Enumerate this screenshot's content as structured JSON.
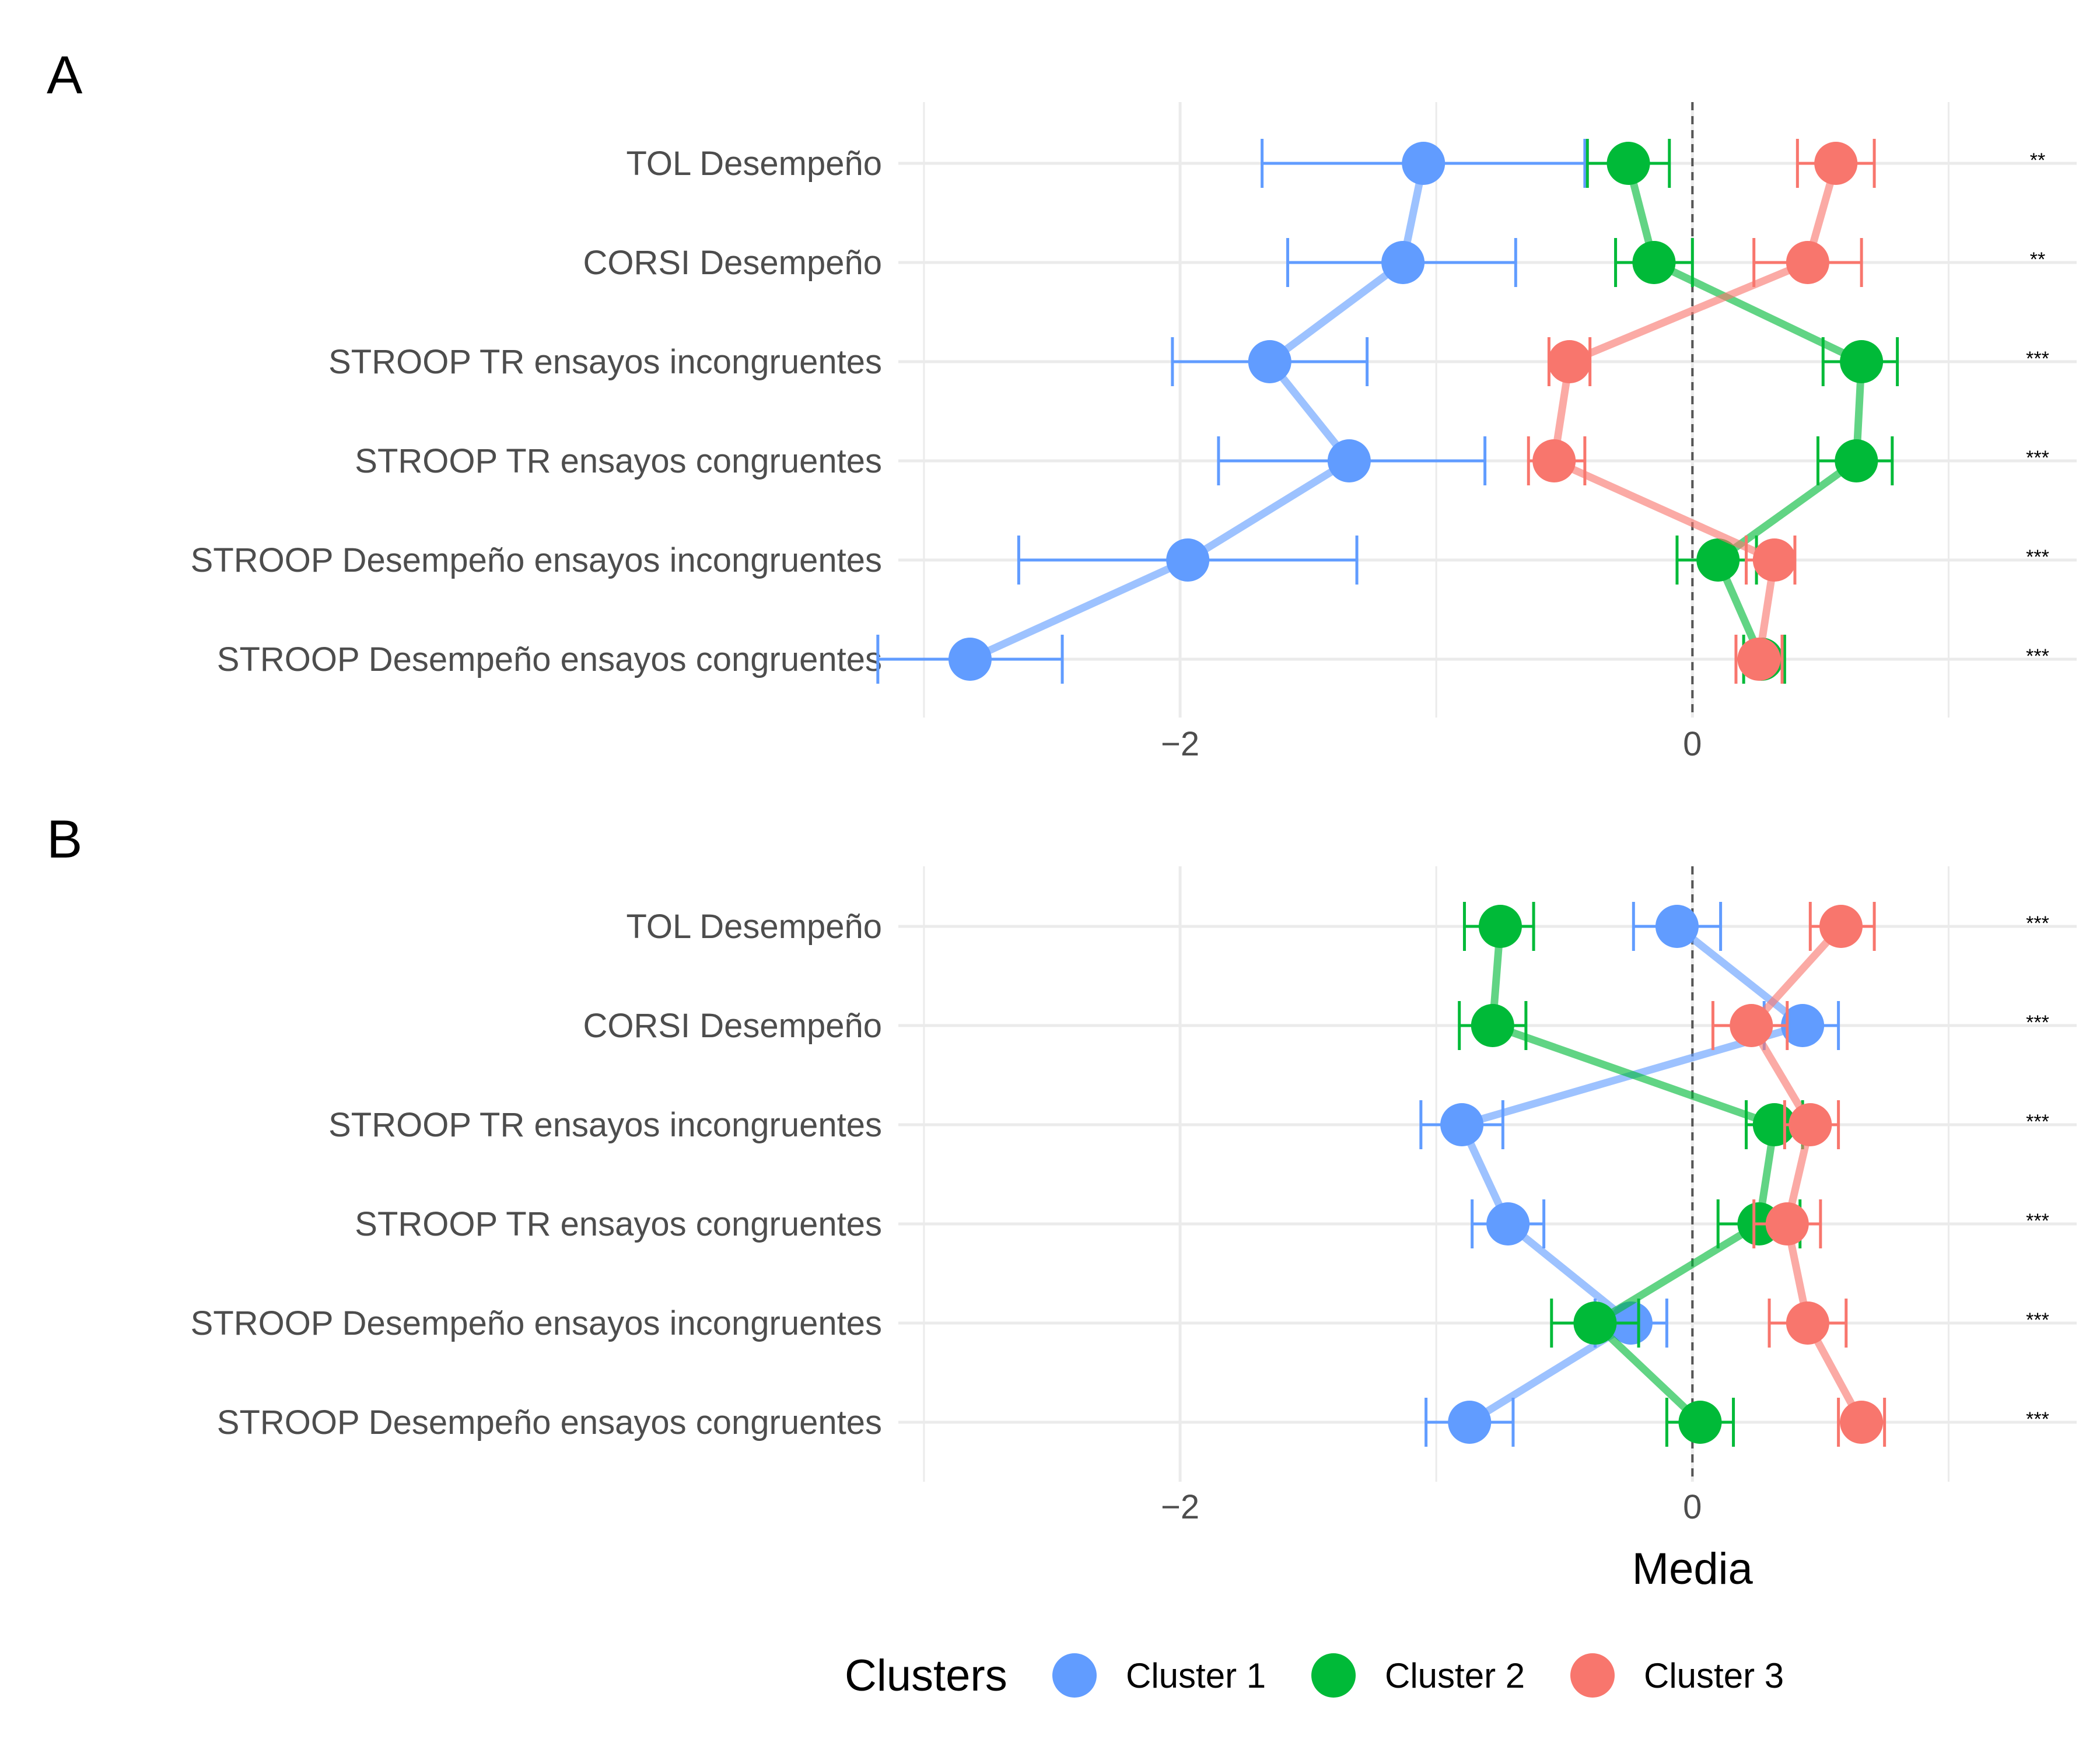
{
  "chart_data": [
    {
      "type": "line",
      "panel_label": "A",
      "xlabel": "",
      "xlim": [
        -3.1,
        1.5
      ],
      "xticks": [
        -2,
        0
      ],
      "reference_line": 0,
      "categories": [
        "TOL Desempeño",
        "CORSI Desempeño",
        "STROOP TR ensayos incongruentes",
        "STROOP TR ensayos congruentes",
        "STROOP Desempeño ensayos incongruentes",
        "STROOP Desempeño ensayos congruentes"
      ],
      "significance": [
        "**",
        "**",
        "***",
        "***",
        "***",
        "***"
      ],
      "series": [
        {
          "name": "Cluster 1",
          "color": "#619CFF",
          "values": [
            -1.05,
            -1.13,
            -1.65,
            -1.34,
            -1.97,
            -2.82
          ],
          "lower": [
            -1.68,
            -1.58,
            -2.03,
            -1.85,
            -2.63,
            -3.18
          ],
          "upper": [
            -0.42,
            -0.69,
            -1.27,
            -0.81,
            -1.31,
            -2.46
          ]
        },
        {
          "name": "Cluster 2",
          "color": "#00BA38",
          "values": [
            -0.25,
            -0.15,
            0.66,
            0.64,
            0.1,
            0.27
          ],
          "lower": [
            -0.41,
            -0.3,
            0.51,
            0.49,
            -0.06,
            0.2
          ],
          "upper": [
            -0.09,
            0.0,
            0.8,
            0.78,
            0.25,
            0.36
          ]
        },
        {
          "name": "Cluster 3",
          "color": "#F8766D",
          "values": [
            0.56,
            0.45,
            -0.48,
            -0.54,
            0.32,
            0.26
          ],
          "lower": [
            0.41,
            0.24,
            -0.56,
            -0.64,
            0.21,
            0.17
          ],
          "upper": [
            0.71,
            0.66,
            -0.4,
            -0.42,
            0.4,
            0.35
          ]
        }
      ]
    },
    {
      "type": "line",
      "panel_label": "B",
      "xlabel": "Media",
      "xlim": [
        -3.1,
        1.5
      ],
      "xticks": [
        -2,
        0
      ],
      "reference_line": 0,
      "categories": [
        "TOL Desempeño",
        "CORSI Desempeño",
        "STROOP TR ensayos incongruentes",
        "STROOP TR ensayos congruentes",
        "STROOP Desempeño ensayos incongruentes",
        "STROOP Desempeño ensayos congruentes"
      ],
      "significance": [
        "***",
        "***",
        "***",
        "***",
        "***",
        "***"
      ],
      "series": [
        {
          "name": "Cluster 1",
          "color": "#619CFF",
          "values": [
            -0.06,
            0.43,
            -0.9,
            -0.72,
            -0.24,
            -0.87
          ],
          "lower": [
            -0.23,
            0.28,
            -1.06,
            -0.86,
            -0.38,
            -1.04
          ],
          "upper": [
            0.11,
            0.57,
            -0.74,
            -0.58,
            -0.1,
            -0.7
          ]
        },
        {
          "name": "Cluster 2",
          "color": "#00BA38",
          "values": [
            -0.75,
            -0.78,
            0.32,
            0.26,
            -0.38,
            0.03
          ],
          "lower": [
            -0.89,
            -0.91,
            0.21,
            0.1,
            -0.55,
            -0.1
          ],
          "upper": [
            -0.62,
            -0.65,
            0.43,
            0.42,
            -0.21,
            0.16
          ]
        },
        {
          "name": "Cluster 3",
          "color": "#F8766D",
          "values": [
            0.58,
            0.23,
            0.46,
            0.37,
            0.45,
            0.66
          ],
          "lower": [
            0.46,
            0.08,
            0.36,
            0.24,
            0.3,
            0.57
          ],
          "upper": [
            0.71,
            0.37,
            0.57,
            0.5,
            0.6,
            0.75
          ]
        }
      ]
    }
  ],
  "legend": {
    "title": "Clusters",
    "items": [
      {
        "label": "Cluster 1",
        "color": "#619CFF"
      },
      {
        "label": "Cluster 2",
        "color": "#00BA38"
      },
      {
        "label": "Cluster 3",
        "color": "#F8766D"
      }
    ]
  }
}
